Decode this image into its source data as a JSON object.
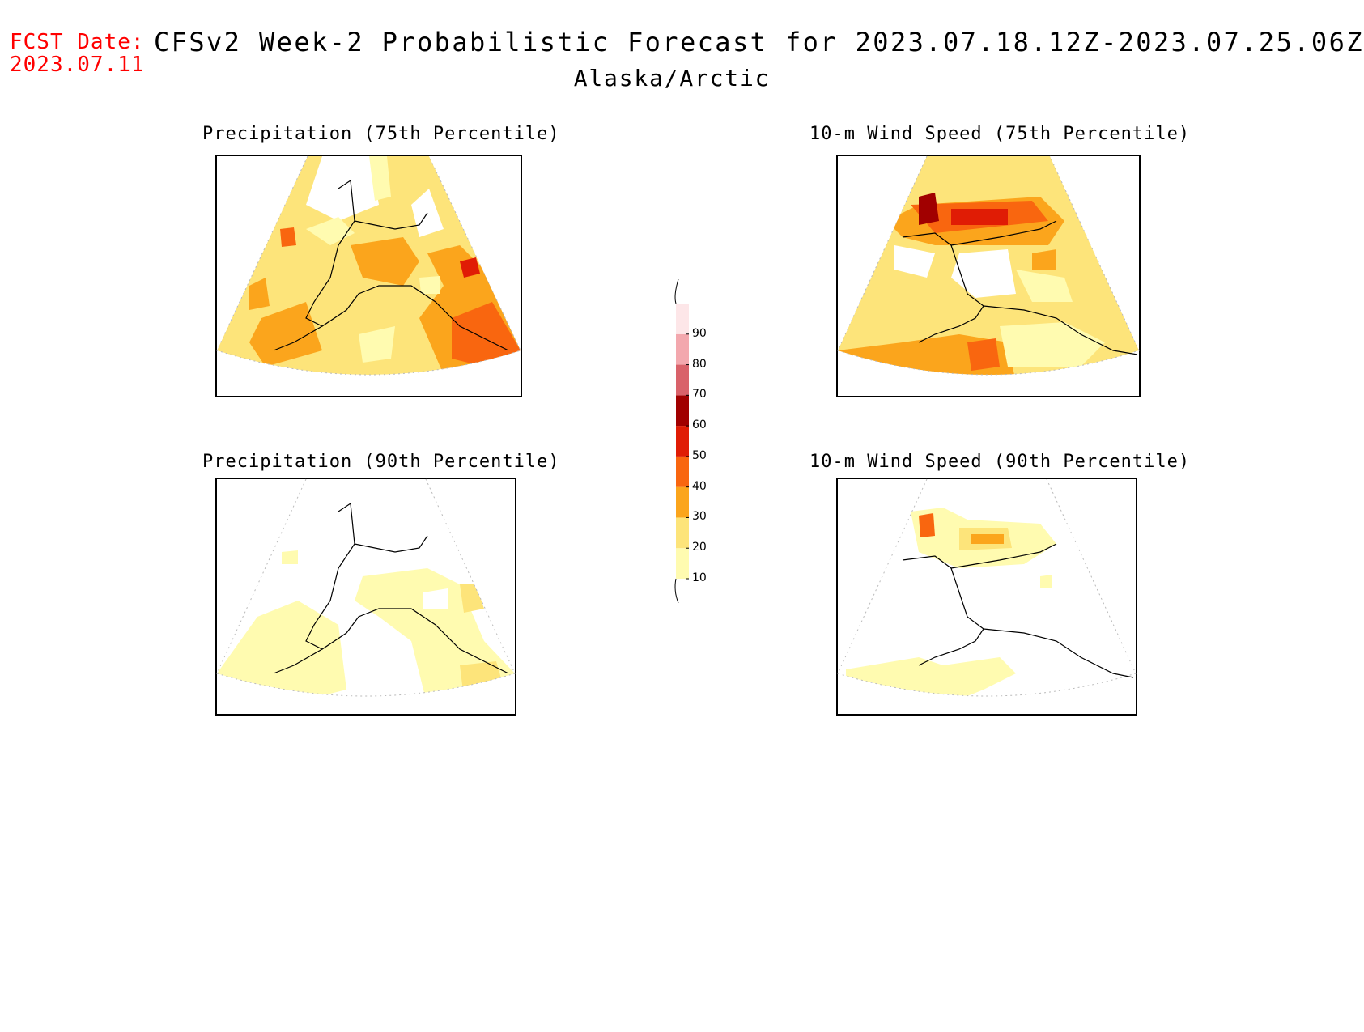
{
  "header": {
    "fcst_date_label": "FCST Date:",
    "fcst_date_value": "2023.07.11",
    "title": "CFSv2 Week-2 Probabilistic Forecast for 2023.07.18.12Z-2023.07.25.06Z",
    "subtitle": "Alaska/Arctic"
  },
  "panels": [
    {
      "id": "precip75",
      "title": "Precipitation (75th Percentile)"
    },
    {
      "id": "wind75",
      "title": "10-m Wind Speed (75th Percentile)"
    },
    {
      "id": "precip90",
      "title": "Precipitation (90th Percentile)"
    },
    {
      "id": "wind90",
      "title": "10-m Wind Speed (90th Percentile)"
    }
  ],
  "colorbar": {
    "levels": [
      "10",
      "20",
      "30",
      "40",
      "50",
      "60",
      "70",
      "80",
      "90"
    ],
    "colors": [
      "#fffbb0",
      "#fde47a",
      "#fba51c",
      "#f9660f",
      "#e01c05",
      "#a10000",
      "#d9626a",
      "#f3a8ae",
      "#fde6e8"
    ]
  }
}
